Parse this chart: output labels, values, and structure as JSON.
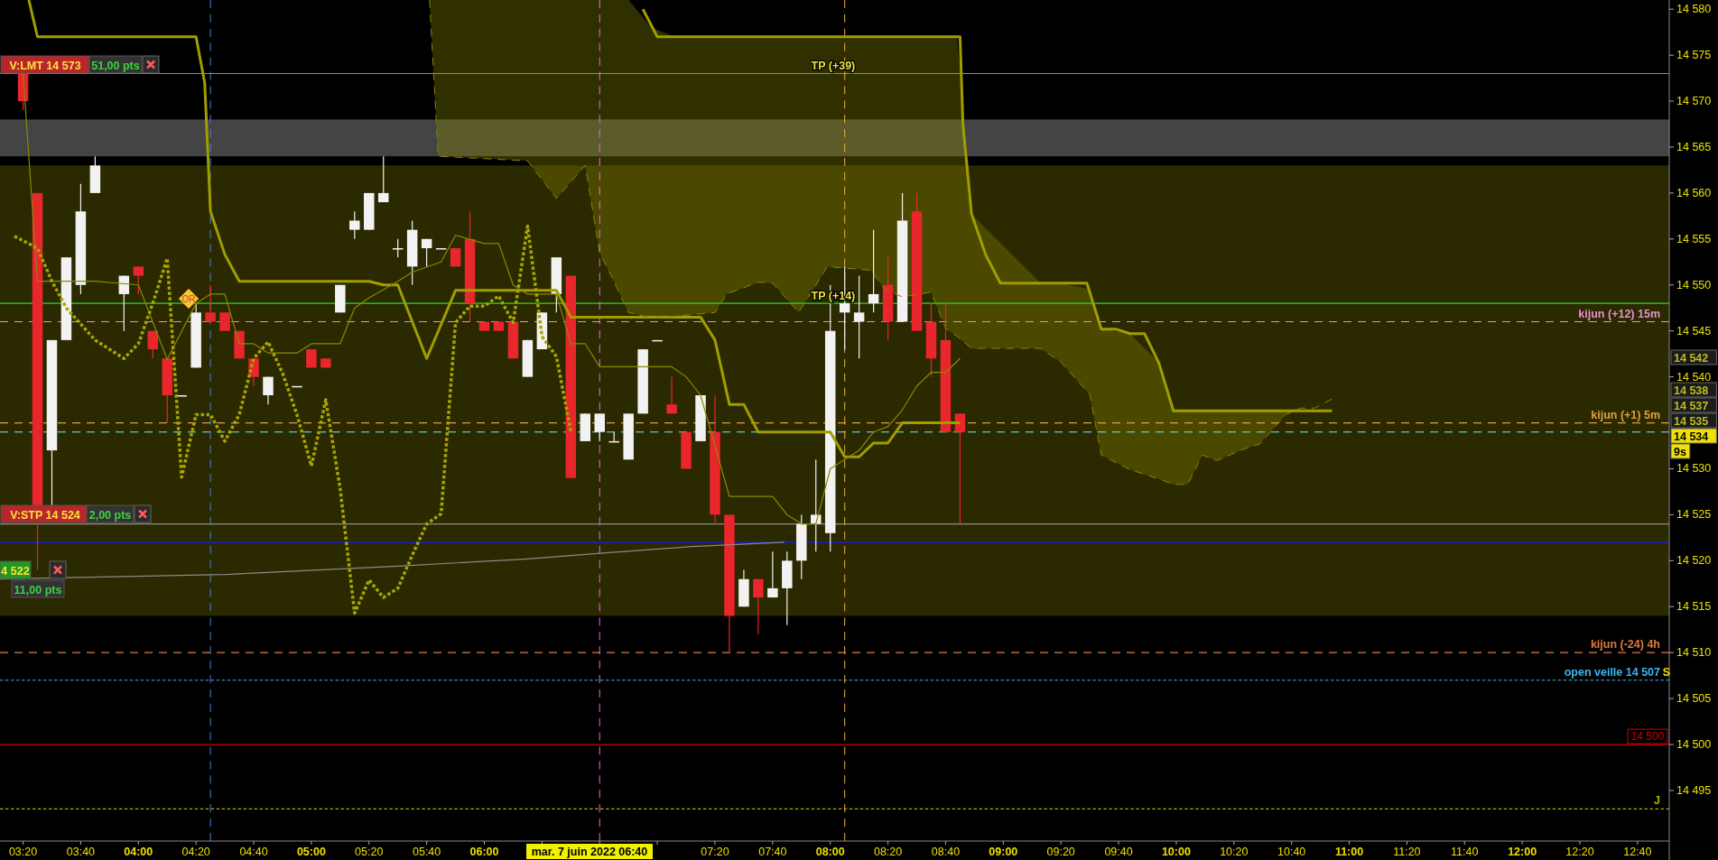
{
  "chart_data": {
    "type": "candlestick",
    "x": [
      "2022-06-07T03:20",
      "2022-06-07T03:25",
      "2022-06-07T03:30",
      "2022-06-07T03:35",
      "2022-06-07T03:40",
      "2022-06-07T03:45",
      "2022-06-07T03:55",
      "2022-06-07T04:00",
      "2022-06-07T04:05",
      "2022-06-07T04:10",
      "2022-06-07T04:15",
      "2022-06-07T04:20",
      "2022-06-07T04:25",
      "2022-06-07T04:30",
      "2022-06-07T04:35",
      "2022-06-07T04:40",
      "2022-06-07T04:45",
      "2022-06-07T04:55",
      "2022-06-07T05:00",
      "2022-06-07T05:05",
      "2022-06-07T05:10",
      "2022-06-07T05:15",
      "2022-06-07T05:20",
      "2022-06-07T05:25",
      "2022-06-07T05:30",
      "2022-06-07T05:35",
      "2022-06-07T05:40",
      "2022-06-07T05:45",
      "2022-06-07T05:50",
      "2022-06-07T05:55",
      "2022-06-07T06:00",
      "2022-06-07T06:05",
      "2022-06-07T06:10",
      "2022-06-07T06:15",
      "2022-06-07T06:20",
      "2022-06-07T06:25",
      "2022-06-07T06:30",
      "2022-06-07T06:35",
      "2022-06-07T06:40",
      "2022-06-07T06:45",
      "2022-06-07T06:50",
      "2022-06-07T06:55",
      "2022-06-07T07:00",
      "2022-06-07T07:05",
      "2022-06-07T07:10",
      "2022-06-07T07:15",
      "2022-06-07T07:20",
      "2022-06-07T07:25",
      "2022-06-07T07:30",
      "2022-06-07T07:35",
      "2022-06-07T07:40",
      "2022-06-07T07:45",
      "2022-06-07T07:50",
      "2022-06-07T07:55",
      "2022-06-07T08:00",
      "2022-06-07T08:05",
      "2022-06-07T08:10",
      "2022-06-07T08:15",
      "2022-06-07T08:20",
      "2022-06-07T08:25",
      "2022-06-07T08:30",
      "2022-06-07T08:35",
      "2022-06-07T08:40",
      "2022-06-07T08:45"
    ],
    "ohlc": [
      [
        14573,
        14573,
        14569,
        14570
      ],
      [
        14560,
        14560,
        14519,
        14526
      ],
      [
        14532,
        14544,
        14526,
        14544
      ],
      [
        14544,
        14553,
        14544,
        14553
      ],
      [
        14550,
        14561,
        14549,
        14558
      ],
      [
        14560,
        14564,
        14560,
        14563
      ],
      [
        14549,
        14551,
        14545,
        14551
      ],
      [
        14552,
        14552,
        14549,
        14551
      ],
      [
        14545,
        14545,
        14542,
        14543
      ],
      [
        14542,
        14542,
        14535,
        14538
      ],
      [
        14538,
        14538,
        14538,
        14538
      ],
      [
        14541,
        14548,
        14541,
        14547
      ],
      [
        14547,
        14550,
        14546,
        14546
      ],
      [
        14547,
        14547,
        14545,
        14545
      ],
      [
        14545,
        14545,
        14542,
        14542
      ],
      [
        14542,
        14542,
        14539,
        14540
      ],
      [
        14538,
        14540,
        14537,
        14540
      ],
      [
        14539,
        14539,
        14539,
        14539
      ],
      [
        14543,
        14543,
        14541,
        14541
      ],
      [
        14542,
        14542,
        14541,
        14541
      ],
      [
        14547,
        14550,
        14547,
        14550
      ],
      [
        14556,
        14558,
        14555,
        14557
      ],
      [
        14556,
        14560,
        14556,
        14560
      ],
      [
        14559,
        14564,
        14559,
        14560
      ],
      [
        14554,
        14555,
        14553,
        14554
      ],
      [
        14552,
        14557,
        14550,
        14556
      ],
      [
        14554,
        14555,
        14552,
        14555
      ],
      [
        14554,
        14554,
        14554,
        14554
      ],
      [
        14554,
        14554,
        14552,
        14552
      ],
      [
        14555,
        14558,
        14546,
        14548
      ],
      [
        14546,
        14546,
        14545,
        14545
      ],
      [
        14546,
        14546,
        14545,
        14545
      ],
      [
        14546,
        14546,
        14542,
        14542
      ],
      [
        14540,
        14544,
        14540,
        14544
      ],
      [
        14543,
        14547,
        14543,
        14547
      ],
      [
        14549,
        14553,
        14547,
        14553
      ],
      [
        14551,
        14551,
        14529,
        14529
      ],
      [
        14533,
        14536,
        14533,
        14536
      ],
      [
        14534,
        14536,
        14533,
        14536
      ],
      [
        14533,
        14534,
        14533,
        14533
      ],
      [
        14531,
        14536,
        14531,
        14536
      ],
      [
        14536,
        14543,
        14536,
        14543
      ],
      [
        14544,
        14544,
        14544,
        14544
      ],
      [
        14537,
        14540,
        14536,
        14536
      ],
      [
        14534,
        14534,
        14530,
        14530
      ],
      [
        14533,
        14538,
        14533,
        14538
      ],
      [
        14534,
        14538,
        14524,
        14525
      ],
      [
        14525,
        14525,
        14510,
        14514
      ],
      [
        14515,
        14519,
        14515,
        14518
      ],
      [
        14518,
        14518,
        14512,
        14516
      ],
      [
        14516,
        14521,
        14516,
        14517
      ],
      [
        14517,
        14521,
        14513,
        14520
      ],
      [
        14520,
        14525,
        14518,
        14524
      ],
      [
        14524,
        14531,
        14521,
        14525
      ],
      [
        14523,
        14550,
        14521,
        14545
      ],
      [
        14547,
        14552,
        14543,
        14548
      ],
      [
        14546,
        14551,
        14542,
        14547
      ],
      [
        14548,
        14556,
        14547,
        14549
      ],
      [
        14550,
        14553,
        14544,
        14546
      ],
      [
        14546,
        14560,
        14546,
        14557
      ],
      [
        14558,
        14560,
        14545,
        14545
      ],
      [
        14546,
        14548,
        14540,
        14542
      ],
      [
        14544,
        14548,
        14534,
        14534
      ],
      [
        14536,
        14536,
        14524,
        14534
      ]
    ],
    "colors": [
      "#e8262b",
      "#e8262b",
      "#f2f2f2",
      "#f2f2f2",
      "#f2f2f2",
      "#f2f2f2",
      "#f2f2f2",
      "#e8262b",
      "#e8262b",
      "#e8262b",
      "#f2f2f2",
      "#f2f2f2",
      "#e8262b",
      "#e8262b",
      "#e8262b",
      "#e8262b",
      "#f2f2f2",
      "#f2f2f2",
      "#e8262b",
      "#e8262b",
      "#f2f2f2",
      "#f2f2f2",
      "#f2f2f2",
      "#f2f2f2",
      "#f2f2f2",
      "#f2f2f2",
      "#f2f2f2",
      "#f2f2f2",
      "#e8262b",
      "#e8262b",
      "#e8262b",
      "#e8262b",
      "#e8262b",
      "#f2f2f2",
      "#f2f2f2",
      "#f2f2f2",
      "#e8262b",
      "#f2f2f2",
      "#f2f2f2",
      "#f2f2f2",
      "#f2f2f2",
      "#f2f2f2",
      "#f2f2f2",
      "#e8262b",
      "#e8262b",
      "#f2f2f2",
      "#e8262b",
      "#e8262b",
      "#f2f2f2",
      "#e8262b",
      "#f2f2f2",
      "#f2f2f2",
      "#f2f2f2",
      "#f2f2f2",
      "#f2f2f2",
      "#f2f2f2",
      "#f2f2f2",
      "#f2f2f2",
      "#e8262b",
      "#f2f2f2",
      "#e8262b",
      "#e8262b",
      "#e8262b",
      "#e8262b"
    ],
    "series": [
      {
        "type": "line",
        "color": "#a19d00",
        "line_style": "solid",
        "x": [
          "2022-06-07T03:22",
          "2022-06-07T03:25",
          "2022-06-07T04:20",
          "2022-06-07T04:23",
          "2022-06-07T04:25",
          "2022-06-07T04:30",
          "2022-06-07T04:35",
          "2022-06-07T05:20",
          "2022-06-07T05:25",
          "2022-06-07T05:30",
          "2022-06-07T05:40",
          "2022-06-07T05:50",
          "2022-06-07T06:25",
          "2022-06-07T06:30",
          "2022-06-07T07:15",
          "2022-06-07T07:20",
          "2022-06-07T07:25",
          "2022-06-07T07:30",
          "2022-06-07T07:35",
          "2022-06-07T08:00",
          "2022-06-07T08:05",
          "2022-06-07T08:10",
          "2022-06-07T08:15",
          "2022-06-07T08:20",
          "2022-06-07T08:25",
          "2022-06-07T08:45"
        ],
        "values": [
          14581,
          14577,
          14577,
          14572,
          14558,
          14553.3,
          14550.4,
          14550.4,
          14550,
          14550,
          14542,
          14549.4,
          14549.4,
          14546.5,
          14546.5,
          14544,
          14537,
          14537,
          14534,
          14534,
          14531.3,
          14531.3,
          14532.8,
          14532.8,
          14535,
          14535
        ]
      },
      {
        "type": "line",
        "color": "#8c8a00",
        "line_style": "solid",
        "x": [
          "2022-06-07T03:20",
          "2022-06-07T03:25",
          "2022-06-07T03:45",
          "2022-06-07T04:00",
          "2022-06-07T04:10",
          "2022-06-07T04:20",
          "2022-06-07T04:25",
          "2022-06-07T04:30",
          "2022-06-07T04:35",
          "2022-06-07T04:40",
          "2022-06-07T04:45",
          "2022-06-07T04:55",
          "2022-06-07T05:00",
          "2022-06-07T05:10",
          "2022-06-07T05:15",
          "2022-06-07T05:20",
          "2022-06-07T05:30",
          "2022-06-07T05:35",
          "2022-06-07T05:45",
          "2022-06-07T05:50",
          "2022-06-07T06:00",
          "2022-06-07T06:05",
          "2022-06-07T06:10",
          "2022-06-07T06:15",
          "2022-06-07T06:25",
          "2022-06-07T06:30",
          "2022-06-07T06:35",
          "2022-06-07T06:40",
          "2022-06-07T07:05",
          "2022-06-07T07:10",
          "2022-06-07T07:15",
          "2022-06-07T07:25",
          "2022-06-07T07:40",
          "2022-06-07T07:45",
          "2022-06-07T07:50",
          "2022-06-07T07:55",
          "2022-06-07T08:00",
          "2022-06-07T08:05",
          "2022-06-07T08:10",
          "2022-06-07T08:15",
          "2022-06-07T08:20",
          "2022-06-07T08:25",
          "2022-06-07T08:30",
          "2022-06-07T08:35",
          "2022-06-07T08:40",
          "2022-06-07T08:45"
        ],
        "values": [
          14573,
          14550.4,
          14550.4,
          14550,
          14541.9,
          14548,
          14549,
          14549,
          14543.6,
          14543.6,
          14542.6,
          14542.6,
          14543.6,
          14543.6,
          14547.5,
          14548.6,
          14550.4,
          14551.4,
          14552.5,
          14555.4,
          14554.5,
          14554.5,
          14550,
          14549,
          14549,
          14543.6,
          14543.6,
          14541.1,
          14541.1,
          14540,
          14538,
          14527,
          14527,
          14525,
          14524,
          14524,
          14530,
          14531,
          14532,
          14534,
          14534.6,
          14536.4,
          14539,
          14540.5,
          14540.5,
          14542
        ]
      },
      {
        "type": "line",
        "color": "#a8a400",
        "line_style": "dotted",
        "x": [
          "2022-06-07T03:17",
          "2022-06-07T03:25",
          "2022-06-07T03:30",
          "2022-06-07T03:35",
          "2022-06-07T03:45",
          "2022-06-07T03:55",
          "2022-06-07T04:00",
          "2022-06-07T04:05",
          "2022-06-07T04:10",
          "2022-06-07T04:15",
          "2022-06-07T04:20",
          "2022-06-07T04:25",
          "2022-06-07T04:30",
          "2022-06-07T04:35",
          "2022-06-07T04:40",
          "2022-06-07T04:45",
          "2022-06-07T04:50",
          "2022-06-07T04:55",
          "2022-06-07T05:00",
          "2022-06-07T05:05",
          "2022-06-07T05:10",
          "2022-06-07T05:15",
          "2022-06-07T05:20",
          "2022-06-07T05:25",
          "2022-06-07T05:30",
          "2022-06-07T05:35",
          "2022-06-07T05:40",
          "2022-06-07T05:45",
          "2022-06-07T05:50",
          "2022-06-07T05:55",
          "2022-06-07T06:00",
          "2022-06-07T06:05",
          "2022-06-07T06:10",
          "2022-06-07T06:15",
          "2022-06-07T06:20",
          "2022-06-07T06:25",
          "2022-06-07T06:30"
        ],
        "values": [
          14555.3,
          14554,
          14550.4,
          14547.5,
          14544,
          14542,
          14543.6,
          14548,
          14552.9,
          14529.1,
          14535.9,
          14535.9,
          14533,
          14535.9,
          14542,
          14543.8,
          14540.4,
          14535.9,
          14530.3,
          14537.5,
          14527.8,
          14514.3,
          14517.9,
          14516,
          14517,
          14520.6,
          14524,
          14525.1,
          14545.9,
          14547.7,
          14547.7,
          14548.8,
          14545.9,
          14556.4,
          14544.4,
          14542.2,
          14534.1
        ]
      },
      {
        "type": "line",
        "color": "#8a8600",
        "line_style": "dashed",
        "x": [
          "2022-06-07T05:41",
          "2022-06-07T05:44",
          "2022-06-07T06:15",
          "2022-06-07T06:25",
          "2022-06-07T06:35",
          "2022-06-07T06:40",
          "2022-06-07T06:44",
          "2022-06-07T06:50",
          "2022-06-07T06:58",
          "2022-06-07T07:06",
          "2022-06-07T07:20",
          "2022-06-07T07:24",
          "2022-06-07T07:35",
          "2022-06-07T07:40",
          "2022-06-07T07:49",
          "2022-06-07T07:59",
          "2022-06-07T08:14",
          "2022-06-07T08:19",
          "2022-06-07T08:25",
          "2022-06-07T08:35",
          "2022-06-07T08:40",
          "2022-06-07T08:44",
          "2022-06-07T08:49",
          "2022-06-07T09:13",
          "2022-06-07T09:20",
          "2022-06-07T09:30",
          "2022-06-07T09:34",
          "2022-06-07T09:44",
          "2022-06-07T09:54",
          "2022-06-07T09:59",
          "2022-06-07T10:04",
          "2022-06-07T10:09",
          "2022-06-07T10:14",
          "2022-06-07T10:24",
          "2022-06-07T10:29",
          "2022-06-07T10:38",
          "2022-06-07T10:43",
          "2022-06-07T10:48",
          "2022-06-07T10:54"
        ],
        "values": [
          14581,
          14564,
          14563.5,
          14559.4,
          14563,
          14553.5,
          14551,
          14547,
          14546.4,
          14546.6,
          14547,
          14549,
          14550.3,
          14550.2,
          14547,
          14552,
          14551.6,
          14549.5,
          14548.7,
          14549.2,
          14545.3,
          14544.4,
          14543.1,
          14543.1,
          14541.6,
          14538.1,
          14531.5,
          14529.9,
          14528.9,
          14528.3,
          14528.3,
          14531.5,
          14530.9,
          14532.2,
          14532.7,
          14535.9,
          14536.6,
          14536.6,
          14537.6
        ],
        "lower": [
          14581,
          14564,
          14563.5,
          14559.4,
          14563,
          14553.5,
          14551,
          14547,
          14546.4,
          14546.6,
          14547,
          14549,
          14550.3,
          14550.2,
          14547,
          14552,
          14551.6,
          14549.5,
          14548.7,
          14549.2,
          14545.3,
          14544.4,
          14543.1,
          14543.1,
          14541.6,
          14538.1,
          14531.5,
          14529.9,
          14528.9,
          14528.3,
          14528.3,
          14531.5,
          14530.9,
          14532.2,
          14532.7,
          14535.9,
          14536.6,
          14536.6,
          14537.6
        ],
        "upper": [
          14581,
          14581,
          14581,
          14581,
          14581,
          14581,
          14581,
          14581,
          14578,
          14577,
          14577,
          14577,
          14577,
          14577,
          14577,
          14577,
          14577,
          14577,
          14577,
          14577,
          14577,
          14577,
          14557.7,
          14550.2,
          14550.2,
          14549.5,
          14545.2,
          14544.7,
          14541.5,
          14536.3,
          14536.3,
          14536.3,
          14536.3,
          14536.3,
          14536.3,
          14536.3,
          14536.6,
          14536.6,
          14537.6
        ]
      },
      {
        "type": "line",
        "color": "#a19d00",
        "line_style": "solid",
        "x": [
          "2022-06-07T06:55",
          "2022-06-07T07:00",
          "2022-06-07T08:45",
          "2022-06-07T08:46",
          "2022-06-07T08:49",
          "2022-06-07T08:54",
          "2022-06-07T08:59",
          "2022-06-07T09:29",
          "2022-06-07T09:34",
          "2022-06-07T09:39",
          "2022-06-07T09:44",
          "2022-06-07T09:49",
          "2022-06-07T09:54",
          "2022-06-07T09:59",
          "2022-06-07T10:54"
        ],
        "values": [
          14580,
          14577,
          14577,
          14567.5,
          14557.7,
          14553.2,
          14550.2,
          14550.2,
          14545.2,
          14545.2,
          14544.7,
          14544.7,
          14541.5,
          14536.3,
          14536.3
        ]
      },
      {
        "type": "line",
        "color": "#8a8a8a",
        "line_style": "solid",
        "x": [
          "2022-06-07T03:12",
          "2022-06-07T04:30",
          "2022-06-07T05:30",
          "2022-06-07T06:15",
          "2022-06-07T06:40",
          "2022-06-07T07:10",
          "2022-06-07T07:44"
        ],
        "values": [
          14518,
          14518.5,
          14519.4,
          14520.2,
          14520.8,
          14521.5,
          14522
        ]
      }
    ],
    "xlim": [
      "2022-06-07T03:12",
      "2022-06-07T12:51"
    ],
    "xticks": [
      {
        "value": "2022-06-07T03:20",
        "label": "03:20"
      },
      {
        "value": "2022-06-07T03:40",
        "label": "03:40"
      },
      {
        "value": "2022-06-07T04:00",
        "label": "04:00"
      },
      {
        "value": "2022-06-07T04:20",
        "label": "04:20"
      },
      {
        "value": "2022-06-07T04:40",
        "label": "04:40"
      },
      {
        "value": "2022-06-07T05:00",
        "label": "05:00"
      },
      {
        "value": "2022-06-07T05:20",
        "label": "05:20"
      },
      {
        "value": "2022-06-07T05:40",
        "label": "05:40"
      },
      {
        "value": "2022-06-07T06:00",
        "label": "06:00"
      },
      {
        "value": "2022-06-07T06:20",
        "label": null
      },
      {
        "value": "2022-06-07T06:40",
        "label": null
      },
      {
        "value": "2022-06-07T07:00",
        "label": null
      },
      {
        "value": "2022-06-07T07:20",
        "label": "07:20"
      },
      {
        "value": "2022-06-07T07:40",
        "label": "07:40"
      },
      {
        "value": "2022-06-07T08:00",
        "label": "08:00"
      },
      {
        "value": "2022-06-07T08:20",
        "label": "08:20"
      },
      {
        "value": "2022-06-07T08:40",
        "label": "08:40"
      },
      {
        "value": "2022-06-07T09:00",
        "label": "09:00"
      },
      {
        "value": "2022-06-07T09:20",
        "label": "09:20"
      },
      {
        "value": "2022-06-07T09:40",
        "label": "09:40"
      },
      {
        "value": "2022-06-07T10:00",
        "label": "10:00"
      },
      {
        "value": "2022-06-07T10:20",
        "label": "10:20"
      },
      {
        "value": "2022-06-07T10:40",
        "label": "10:40"
      },
      {
        "value": "2022-06-07T11:00",
        "label": "11:00"
      },
      {
        "value": "2022-06-07T11:20",
        "label": "11:20"
      },
      {
        "value": "2022-06-07T11:40",
        "label": "11:40"
      },
      {
        "value": "2022-06-07T12:00",
        "label": "12:00"
      },
      {
        "value": "2022-06-07T12:20",
        "label": "12:20"
      },
      {
        "value": "2022-06-07T12:40",
        "label": "12:40"
      }
    ],
    "ylim": [
      14489.5,
      14581
    ],
    "yticks": [
      {
        "value": 14495,
        "label": "14 495"
      },
      {
        "value": 14500,
        "label": "14 500"
      },
      {
        "value": 14505,
        "label": "14 505"
      },
      {
        "value": 14510,
        "label": "14 510"
      },
      {
        "value": 14515,
        "label": "14 515"
      },
      {
        "value": 14520,
        "label": "14 520"
      },
      {
        "value": 14525,
        "label": "14 525"
      },
      {
        "value": 14530,
        "label": "14 530"
      },
      {
        "value": 14540,
        "label": "14 540"
      },
      {
        "value": 14545,
        "label": "14 545"
      },
      {
        "value": 14550,
        "label": "14 550"
      },
      {
        "value": 14555,
        "label": "14 555"
      },
      {
        "value": 14560,
        "label": "14 560"
      },
      {
        "value": 14565,
        "label": "14 565"
      },
      {
        "value": 14570,
        "label": "14 570"
      },
      {
        "value": 14575,
        "label": "14 575"
      },
      {
        "value": 14580,
        "label": "14 580"
      }
    ],
    "bands": [
      {
        "axis": "y",
        "from": 14514,
        "to": 14563,
        "color": "#2a2900"
      },
      {
        "axis": "y",
        "from": 14564,
        "to": 14568,
        "color": "#444444"
      }
    ],
    "ref_lines": [
      {
        "axis": "y",
        "value": 14573,
        "color": "#8c8c8c",
        "line_style": "solid"
      },
      {
        "axis": "y",
        "value": 14524,
        "color": "#8c8c8c",
        "line_style": "solid"
      },
      {
        "axis": "y",
        "value": 14522,
        "color": "#1a1aff",
        "line_style": "solid"
      },
      {
        "axis": "y",
        "value": 14548,
        "color": "#22dd22",
        "line_style": "solid"
      },
      {
        "axis": "y",
        "value": 14546,
        "color": "#e88fd0",
        "line_style": "dashed",
        "label": "kijun (+12) 15m"
      },
      {
        "axis": "y",
        "value": 14535,
        "color": "#e0a040",
        "line_style": "dashed",
        "label": "kijun (+1) 5m"
      },
      {
        "axis": "y",
        "value": 14534,
        "color": "#7fe8f0",
        "line_style": "dashed"
      },
      {
        "axis": "y",
        "value": 14510,
        "color": "#e07a40",
        "line_style": "dashed",
        "label": "kijun (-24) 4h"
      },
      {
        "axis": "y",
        "value": 14507,
        "color": "#3cb4f0",
        "line_style": "dotted",
        "label": "open veille 14 507"
      },
      {
        "axis": "y",
        "value": 14500,
        "color": "#cc0000",
        "line_style": "solid",
        "label": "14 500"
      },
      {
        "axis": "y",
        "value": 14493,
        "color": "#b0b000",
        "line_style": "dotted",
        "label": "J"
      },
      {
        "axis": "x",
        "value": "2022-06-07T04:25",
        "color": "#4a7fe0",
        "line_style": "dashed"
      },
      {
        "axis": "x",
        "value": "2022-06-07T06:40",
        "color": "#e070e0",
        "line_style": "dashed"
      },
      {
        "axis": "x",
        "value": "2022-06-07T08:05",
        "color": "#f0b030",
        "line_style": "dashed"
      }
    ],
    "annotations": [
      "V:LMT  14 573",
      "51,00 pts",
      "V:STP  14 524",
      "2,00 pts",
      "4 522",
      "11,00 pts",
      {
        "text": "TP (+39)",
        "x": "2022-06-07T08:01",
        "y": 14573
      },
      {
        "text": "TP (+14)",
        "x": "2022-06-07T08:01",
        "y": 14548
      },
      "OR",
      "S",
      "14 542",
      "14 538",
      "14 537",
      "14 535",
      "14 534",
      "9s",
      "mar. 7 juin 2022 06:40"
    ]
  }
}
